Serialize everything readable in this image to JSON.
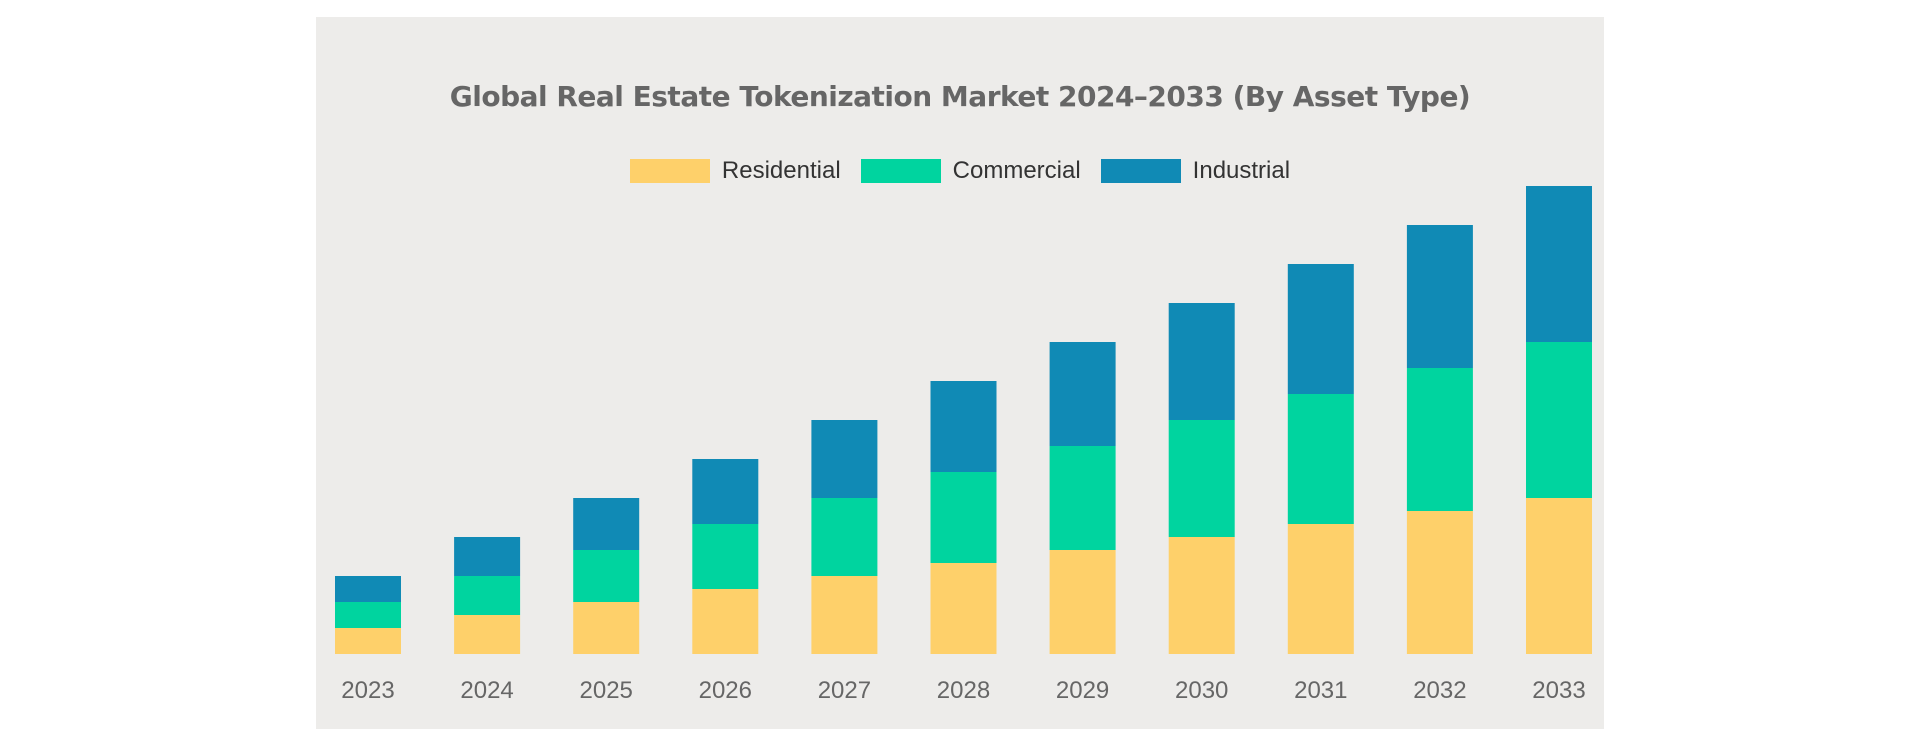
{
  "chart_data": {
    "type": "bar",
    "stacked": true,
    "title": "Global Real Estate Tokenization Market 2024–2033 (By Asset Type)",
    "xlabel": "",
    "ylabel": "",
    "categories": [
      "2023",
      "2024",
      "2025",
      "2026",
      "2027",
      "2028",
      "2029",
      "2030",
      "2031",
      "2032",
      "2033"
    ],
    "series": [
      {
        "name": "Residential",
        "color": "#fed06a",
        "values": [
          2,
          3,
          4,
          5,
          6,
          7,
          8,
          9,
          10,
          11,
          12
        ]
      },
      {
        "name": "Commercial",
        "color": "#00d49f",
        "values": [
          2,
          3,
          4,
          5,
          6,
          7,
          8,
          9,
          10,
          11,
          12
        ]
      },
      {
        "name": "Industrial",
        "color": "#108ab5",
        "values": [
          2,
          3,
          4,
          5,
          6,
          7,
          8,
          9,
          10,
          11,
          12
        ]
      }
    ],
    "ylim": [
      0,
      36
    ],
    "grid": false,
    "legend_position": "top-center"
  }
}
